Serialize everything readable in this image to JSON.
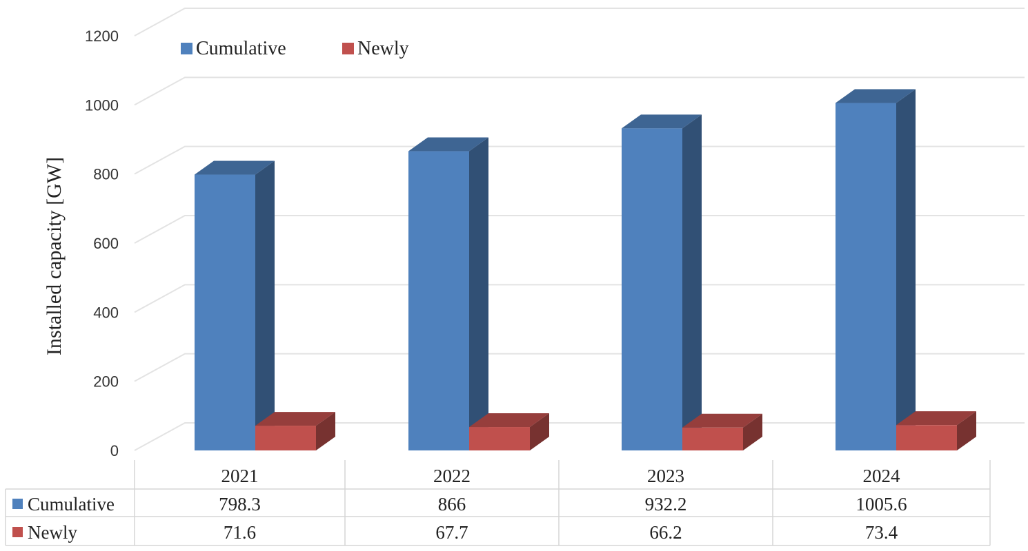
{
  "chart_data": {
    "type": "bar",
    "title": "",
    "xlabel": "",
    "ylabel": "Installed capacity [GW]",
    "categories": [
      "2021",
      "2022",
      "2023",
      "2024"
    ],
    "series": [
      {
        "name": "Cumulative",
        "values": [
          798.3,
          866,
          932.2,
          1005.6
        ],
        "color": "#4f81bd"
      },
      {
        "name": "Newly",
        "values": [
          71.6,
          67.7,
          66.2,
          73.4
        ],
        "color": "#c0504d"
      }
    ],
    "ylim": [
      0,
      1200
    ],
    "yticks": [
      "0",
      "200",
      "400",
      "600",
      "800",
      "1000",
      "1200"
    ],
    "grid": true,
    "legend_position": "top-left",
    "data_table": {
      "rows": [
        {
          "label": "Cumulative",
          "values": [
            "798.3",
            "866",
            "932.2",
            "1005.6"
          ]
        },
        {
          "label": "Newly",
          "values": [
            "71.6",
            "67.7",
            "66.2",
            "73.4"
          ]
        }
      ]
    }
  }
}
